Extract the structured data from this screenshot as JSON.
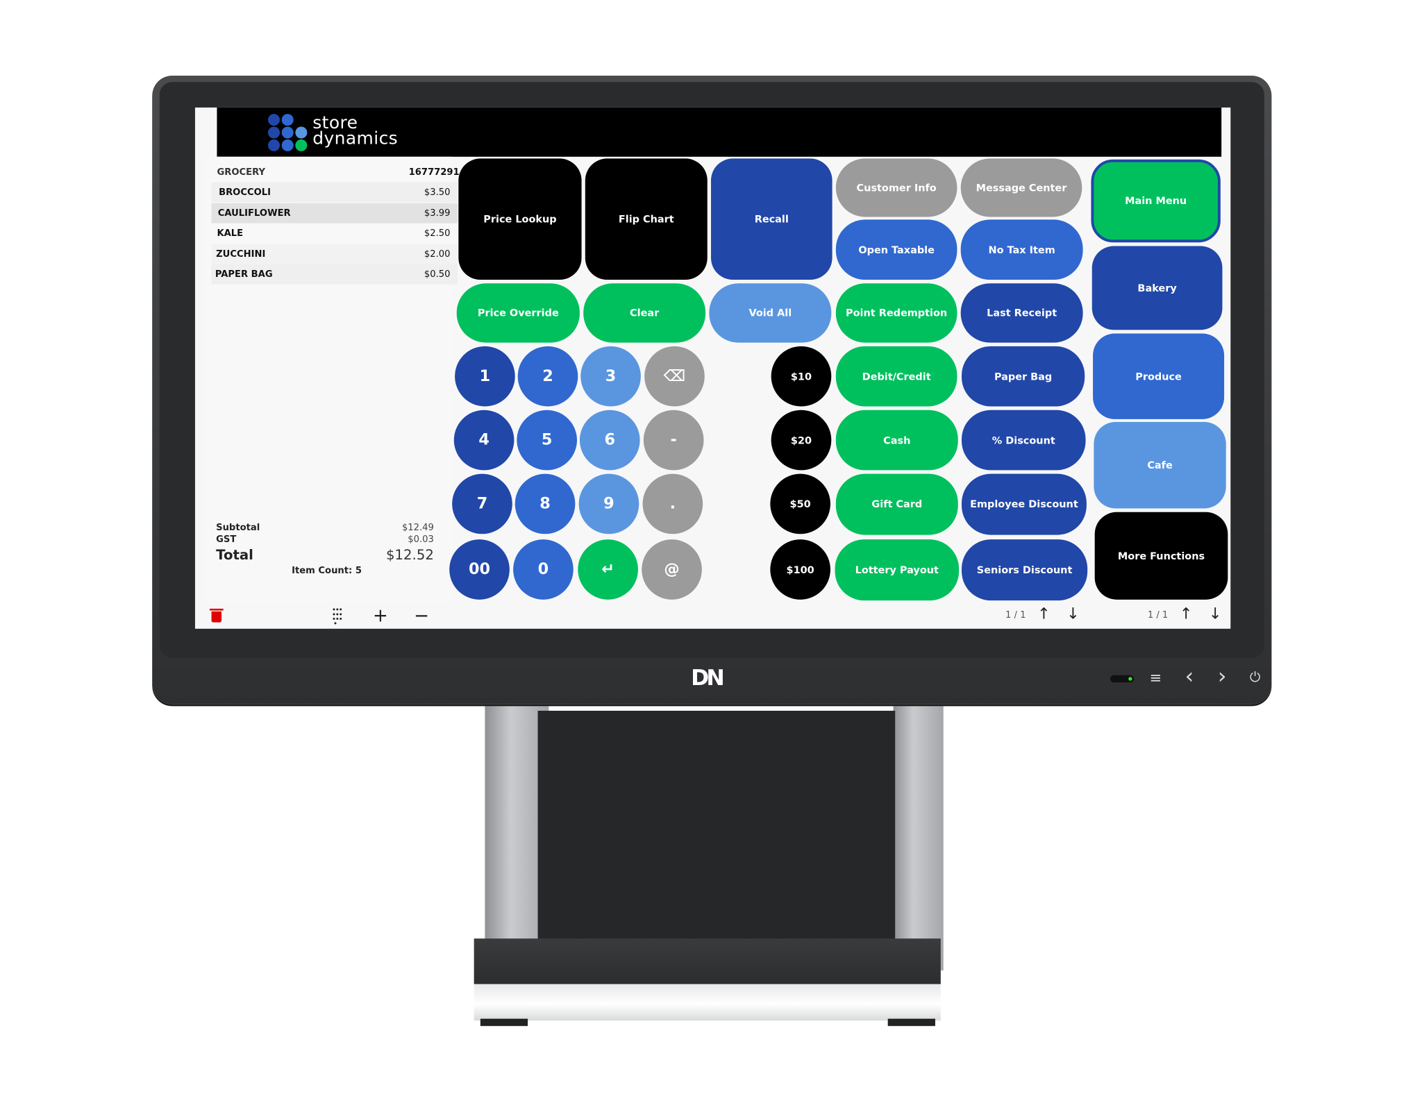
{
  "brand": {
    "line1": "store",
    "line2": "dynamics",
    "logo_colors": [
      "#2147a8",
      "#3068d0",
      "#5a96e0",
      "#00c05e"
    ]
  },
  "receipt": {
    "department": "GROCERY",
    "transaction_id": "16777291",
    "items": [
      {
        "name": "BROCCOLI",
        "price": "$3.50"
      },
      {
        "name": "CAULIFLOWER",
        "price": "$3.99"
      },
      {
        "name": "KALE",
        "price": "$2.50"
      },
      {
        "name": "ZUCCHINI",
        "price": "$2.00"
      },
      {
        "name": "PAPER BAG",
        "price": "$0.50"
      }
    ],
    "subtotal_label": "Subtotal",
    "subtotal": "$12.49",
    "tax_label": "GST",
    "tax": "$0.03",
    "total_label": "Total",
    "total": "$12.52",
    "item_count": "Item Count: 5"
  },
  "toolbar": {
    "delete_icon": "trash-icon",
    "keypad_icon": "keypad-icon",
    "plus": "+",
    "minus": "−"
  },
  "functions": {
    "price_lookup": "Price Lookup",
    "flip_chart": "Flip Chart",
    "recall": "Recall",
    "customer_info": "Customer Info",
    "message_center": "Message Center",
    "open_taxable": "Open Taxable",
    "no_tax_item": "No Tax Item",
    "price_override": "Price Override",
    "clear": "Clear",
    "void_all": "Void All",
    "point_redemption": "Point Redemption",
    "last_receipt": "Last Receipt",
    "debit_credit": "Debit/Credit",
    "paper_bag": "Paper Bag",
    "cash": "Cash",
    "pct_discount": "% Discount",
    "gift_card": "Gift Card",
    "employee_discount": "Employee Discount",
    "lottery_payout": "Lottery Payout",
    "seniors_discount": "Seniors Discount"
  },
  "keypad": [
    "1",
    "2",
    "3",
    "⌫",
    "4",
    "5",
    "6",
    "-",
    "7",
    "8",
    "9",
    ".",
    "00",
    "0",
    "↵",
    "@"
  ],
  "cash_amounts": [
    "$10",
    "$20",
    "$50",
    "$100"
  ],
  "menus": {
    "main_menu": "Main Menu",
    "bakery": "Bakery",
    "produce": "Produce",
    "cafe": "Cafe",
    "more_functions": "More Functions"
  },
  "pagination": {
    "functions_page": "1 / 1",
    "menus_page": "1 / 1",
    "up": "↑",
    "down": "↓"
  },
  "hardware": {
    "logo": "DN",
    "menu": "≡",
    "back": "‹",
    "forward": "›",
    "power": "⏻"
  },
  "colors": {
    "dark_blue": "#2147a8",
    "mid_blue": "#3068d0",
    "light_blue": "#5a96e0",
    "green": "#00c05e",
    "gray": "#9b9b9b",
    "delete_red": "#e00000"
  }
}
